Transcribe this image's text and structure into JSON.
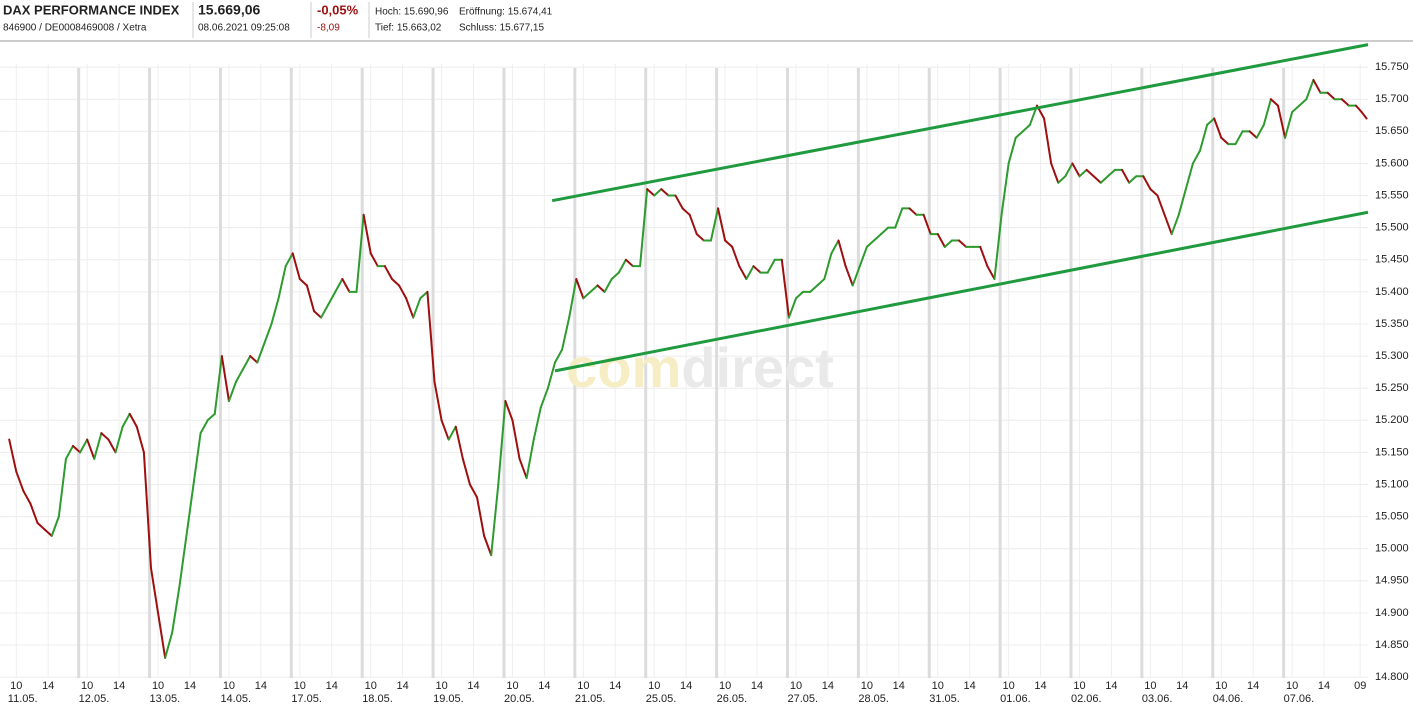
{
  "header": {
    "title": "DAX PERFORMANCE INDEX",
    "id": "846900 / DE0008469008 / Xetra",
    "price": "15.669,06",
    "datetime": "08.06.2021 09:25:08",
    "change_pct": "-0,05%",
    "change": "-8,09",
    "high": "Hoch: 15.690,96",
    "open": "Eröffnung: 15.674,41",
    "low": "Tief: 15.663,02",
    "close": "Schluss: 15.677,15"
  },
  "chart_data": {
    "type": "line",
    "watermark": [
      "com",
      "direct"
    ],
    "xlim": [
      -0.11,
      19.19
    ],
    "ylim": [
      14780,
      15786
    ],
    "grid": true,
    "yticks": [
      {
        "value": 14800,
        "label": "14.800"
      },
      {
        "value": 14850,
        "label": "14.850"
      },
      {
        "value": 14900,
        "label": "14.900"
      },
      {
        "value": 14950,
        "label": "14.950"
      },
      {
        "value": 15000,
        "label": "15.000"
      },
      {
        "value": 15050,
        "label": "15.050"
      },
      {
        "value": 15100,
        "label": "15.100"
      },
      {
        "value": 15150,
        "label": "15.150"
      },
      {
        "value": 15200,
        "label": "15.200"
      },
      {
        "value": 15250,
        "label": "15.250"
      },
      {
        "value": 15300,
        "label": "15.300"
      },
      {
        "value": 15350,
        "label": "15.350"
      },
      {
        "value": 15400,
        "label": "15.400"
      },
      {
        "value": 15450,
        "label": "15.450"
      },
      {
        "value": 15500,
        "label": "15.500"
      },
      {
        "value": 15550,
        "label": "15.550"
      },
      {
        "value": 15600,
        "label": "15.600"
      },
      {
        "value": 15650,
        "label": "15.650"
      },
      {
        "value": 15700,
        "label": "15.700"
      },
      {
        "value": 15750,
        "label": "15.750"
      }
    ],
    "xticks": [
      {
        "value": 0.12,
        "label": "10"
      },
      {
        "value": 0.57,
        "label": "14"
      },
      {
        "value": 1.12,
        "label": "10"
      },
      {
        "value": 1.57,
        "label": "14"
      },
      {
        "value": 2.12,
        "label": "10"
      },
      {
        "value": 2.57,
        "label": "14"
      },
      {
        "value": 3.12,
        "label": "10"
      },
      {
        "value": 3.57,
        "label": "14"
      },
      {
        "value": 4.12,
        "label": "10"
      },
      {
        "value": 4.57,
        "label": "14"
      },
      {
        "value": 5.12,
        "label": "10"
      },
      {
        "value": 5.57,
        "label": "14"
      },
      {
        "value": 6.12,
        "label": "10"
      },
      {
        "value": 6.57,
        "label": "14"
      },
      {
        "value": 7.12,
        "label": "10"
      },
      {
        "value": 7.57,
        "label": "14"
      },
      {
        "value": 8.12,
        "label": "10"
      },
      {
        "value": 8.57,
        "label": "14"
      },
      {
        "value": 9.12,
        "label": "10"
      },
      {
        "value": 9.57,
        "label": "14"
      },
      {
        "value": 10.12,
        "label": "10"
      },
      {
        "value": 10.57,
        "label": "14"
      },
      {
        "value": 11.12,
        "label": "10"
      },
      {
        "value": 11.57,
        "label": "14"
      },
      {
        "value": 12.12,
        "label": "10"
      },
      {
        "value": 12.57,
        "label": "14"
      },
      {
        "value": 13.12,
        "label": "10"
      },
      {
        "value": 13.57,
        "label": "14"
      },
      {
        "value": 14.12,
        "label": "10"
      },
      {
        "value": 14.57,
        "label": "14"
      },
      {
        "value": 15.12,
        "label": "10"
      },
      {
        "value": 15.57,
        "label": "14"
      },
      {
        "value": 16.12,
        "label": "10"
      },
      {
        "value": 16.57,
        "label": "14"
      },
      {
        "value": 17.12,
        "label": "10"
      },
      {
        "value": 17.57,
        "label": "14"
      },
      {
        "value": 18.12,
        "label": "10"
      },
      {
        "value": 18.57,
        "label": "14"
      },
      {
        "value": 19.08,
        "label": "09"
      }
    ],
    "date_labels": [
      {
        "value": 0,
        "label": "11.05."
      },
      {
        "value": 1,
        "label": "12.05."
      },
      {
        "value": 2,
        "label": "13.05."
      },
      {
        "value": 3,
        "label": "14.05."
      },
      {
        "value": 4,
        "label": "17.05."
      },
      {
        "value": 5,
        "label": "18.05."
      },
      {
        "value": 6,
        "label": "19.05."
      },
      {
        "value": 7,
        "label": "20.05."
      },
      {
        "value": 8,
        "label": "21.05."
      },
      {
        "value": 9,
        "label": "25.05."
      },
      {
        "value": 10,
        "label": "26.05."
      },
      {
        "value": 11,
        "label": "27.05."
      },
      {
        "value": 12,
        "label": "28.05."
      },
      {
        "value": 13,
        "label": "31.05."
      },
      {
        "value": 14,
        "label": "01.06."
      },
      {
        "value": 15,
        "label": "02.06."
      },
      {
        "value": 16,
        "label": "03.06."
      },
      {
        "value": 17,
        "label": "04.06."
      },
      {
        "value": 18,
        "label": "07.06."
      }
    ],
    "up_color": "#2e9b2e",
    "down_color": "#9e0f0f",
    "series": [
      {
        "x": [
          0.02,
          0.12,
          0.22,
          0.32,
          0.42,
          0.52,
          0.62,
          0.72,
          0.82,
          0.92,
          1.02,
          1.12,
          1.22,
          1.32,
          1.42,
          1.52,
          1.62,
          1.72,
          1.82,
          1.92,
          2.02,
          2.12,
          2.22,
          2.32,
          2.42,
          2.52,
          2.62,
          2.72,
          2.82,
          2.92,
          3.02,
          3.12,
          3.22,
          3.32,
          3.42,
          3.52,
          3.62,
          3.72,
          3.82,
          3.92,
          4.02,
          4.12,
          4.22,
          4.32,
          4.42,
          4.52,
          4.62,
          4.72,
          4.82,
          4.92,
          5.02,
          5.12,
          5.22,
          5.32,
          5.42,
          5.52,
          5.62,
          5.72,
          5.82,
          5.92,
          6.02,
          6.12,
          6.22,
          6.32,
          6.42,
          6.52,
          6.62,
          6.72,
          6.82,
          6.92,
          7.02,
          7.12,
          7.22,
          7.32,
          7.42,
          7.52,
          7.62,
          7.72,
          7.82,
          7.92,
          8.02,
          8.12,
          8.22,
          8.32,
          8.42,
          8.52,
          8.62,
          8.72,
          8.82,
          8.92,
          9.02,
          9.12,
          9.22,
          9.32,
          9.42,
          9.52,
          9.62,
          9.72,
          9.82,
          9.92,
          10.02,
          10.12,
          10.22,
          10.32,
          10.42,
          10.52,
          10.62,
          10.72,
          10.82,
          10.92,
          11.02,
          11.12,
          11.22,
          11.32,
          11.42,
          11.52,
          11.62,
          11.72,
          11.82,
          11.92,
          12.02,
          12.12,
          12.22,
          12.32,
          12.42,
          12.52,
          12.62,
          12.72,
          12.82,
          12.92,
          13.02,
          13.12,
          13.22,
          13.32,
          13.42,
          13.52,
          13.62,
          13.72,
          13.82,
          13.92,
          14.02,
          14.12,
          14.22,
          14.32,
          14.42,
          14.52,
          14.62,
          14.72,
          14.82,
          14.92,
          15.02,
          15.12,
          15.22,
          15.32,
          15.42,
          15.52,
          15.62,
          15.72,
          15.82,
          15.92,
          16.02,
          16.12,
          16.22,
          16.32,
          16.42,
          16.52,
          16.62,
          16.72,
          16.82,
          16.92,
          17.02,
          17.12,
          17.22,
          17.32,
          17.42,
          17.52,
          17.62,
          17.72,
          17.82,
          17.92,
          18.02,
          18.12,
          18.22,
          18.32,
          18.42,
          18.52,
          18.62,
          18.72,
          18.82,
          18.92,
          19.02,
          19.1,
          19.17
        ],
        "values": [
          15170,
          15120,
          15090,
          15070,
          15040,
          15030,
          15020,
          15050,
          15140,
          15160,
          15150,
          15170,
          15140,
          15180,
          15170,
          15150,
          15190,
          15210,
          15190,
          15150,
          14970,
          14900,
          14830,
          14870,
          14940,
          15020,
          15100,
          15180,
          15200,
          15210,
          15300,
          15230,
          15260,
          15280,
          15300,
          15290,
          15320,
          15350,
          15390,
          15440,
          15460,
          15420,
          15410,
          15370,
          15360,
          15380,
          15400,
          15420,
          15400,
          15400,
          15520,
          15460,
          15440,
          15440,
          15420,
          15410,
          15390,
          15360,
          15390,
          15400,
          15260,
          15200,
          15170,
          15190,
          15140,
          15100,
          15080,
          15020,
          14990,
          15100,
          15230,
          15200,
          15140,
          15110,
          15170,
          15220,
          15250,
          15290,
          15310,
          15360,
          15420,
          15390,
          15400,
          15410,
          15400,
          15420,
          15430,
          15450,
          15440,
          15440,
          15560,
          15550,
          15560,
          15550,
          15550,
          15530,
          15520,
          15490,
          15480,
          15480,
          15530,
          15480,
          15470,
          15440,
          15420,
          15440,
          15430,
          15430,
          15450,
          15450,
          15360,
          15390,
          15400,
          15400,
          15410,
          15420,
          15460,
          15480,
          15440,
          15410,
          15440,
          15470,
          15480,
          15490,
          15500,
          15500,
          15530,
          15530,
          15520,
          15520,
          15490,
          15490,
          15470,
          15480,
          15480,
          15470,
          15470,
          15470,
          15440,
          15420,
          15520,
          15600,
          15640,
          15650,
          15660,
          15690,
          15670,
          15600,
          15570,
          15580,
          15600,
          15580,
          15590,
          15580,
          15570,
          15580,
          15590,
          15590,
          15570,
          15580,
          15580,
          15560,
          15550,
          15520,
          15490,
          15520,
          15560,
          15600,
          15620,
          15660,
          15670,
          15640,
          15630,
          15630,
          15650,
          15650,
          15640,
          15660,
          15700,
          15690,
          15640,
          15680,
          15690,
          15700,
          15730,
          15710,
          15710,
          15700,
          15700,
          15690,
          15690,
          15680,
          15670
        ]
      }
    ],
    "trendlines": [
      {
        "color": "#1f9a3e",
        "x": [
          7.68,
          19.19
        ],
        "values": [
          15542,
          15785
        ]
      },
      {
        "color": "#1f9a3e",
        "x": [
          7.72,
          19.19
        ],
        "values": [
          15277,
          15524
        ]
      }
    ]
  }
}
